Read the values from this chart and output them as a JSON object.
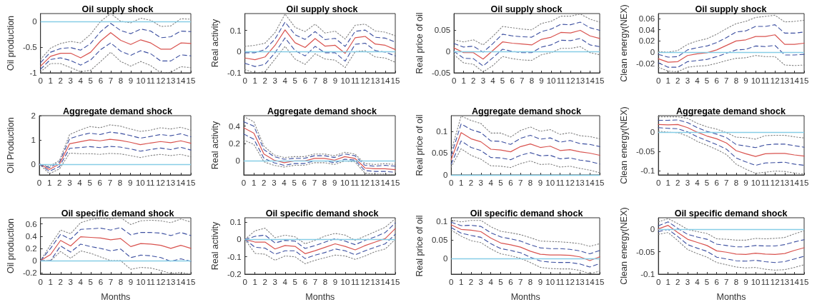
{
  "chart_data": [
    {
      "type": "line",
      "title": "Oil supply shock",
      "ylabel": "Oil production",
      "x": [
        0,
        1,
        2,
        3,
        4,
        5,
        6,
        7,
        8,
        9,
        10,
        11,
        12,
        13,
        14,
        15
      ],
      "xlim": [
        0,
        15
      ],
      "xticks": [
        0,
        1,
        2,
        3,
        4,
        5,
        6,
        7,
        8,
        9,
        10,
        11,
        12,
        13,
        14,
        15
      ],
      "ylim": [
        -1,
        0.15
      ],
      "yticks": [
        -1,
        -0.5,
        0
      ],
      "marker": "none",
      "grid": false,
      "ref_lines": [
        {
          "axis": "y",
          "value": 0,
          "color": "#87cde6"
        }
      ],
      "series": [
        {
          "color": "#808080",
          "line_style": "dotted",
          "values": [
            -0.74,
            -0.52,
            -0.43,
            -0.39,
            -0.42,
            -0.25,
            0,
            0.15,
            0,
            -0.03,
            0.06,
            0.02,
            -0.1,
            -0.09,
            0.05,
            0.04
          ]
        },
        {
          "color": "#3c4fa0",
          "line_style": "dashed",
          "values": [
            -0.8,
            -0.6,
            -0.53,
            -0.51,
            -0.56,
            -0.43,
            -0.2,
            -0.04,
            -0.18,
            -0.24,
            -0.15,
            -0.19,
            -0.32,
            -0.3,
            -0.19,
            -0.2
          ]
        },
        {
          "color": "#d9534f",
          "line_style": "solid",
          "values": [
            -0.87,
            -0.68,
            -0.62,
            -0.62,
            -0.71,
            -0.6,
            -0.38,
            -0.22,
            -0.37,
            -0.45,
            -0.36,
            -0.42,
            -0.54,
            -0.54,
            -0.42,
            -0.43
          ]
        },
        {
          "color": "#3c4fa0",
          "line_style": "dashed",
          "values": [
            -0.93,
            -0.74,
            -0.71,
            -0.76,
            -0.85,
            -0.75,
            -0.55,
            -0.42,
            -0.58,
            -0.66,
            -0.57,
            -0.63,
            -0.77,
            -0.77,
            -0.65,
            -0.67
          ]
        },
        {
          "color": "#808080",
          "line_style": "dotted",
          "values": [
            -0.98,
            -0.82,
            -0.82,
            -0.9,
            -0.98,
            -0.95,
            -0.78,
            -0.6,
            -0.78,
            -0.87,
            -0.78,
            -0.86,
            -1,
            -0.99,
            -0.88,
            -0.9
          ]
        }
      ]
    },
    {
      "type": "line",
      "title": "Oil supply shock",
      "ylabel": "Real activity",
      "x": [
        0,
        1,
        2,
        3,
        4,
        5,
        6,
        7,
        8,
        9,
        10,
        11,
        12,
        13,
        14,
        15
      ],
      "xlim": [
        0,
        15
      ],
      "xticks": [
        0,
        1,
        2,
        3,
        4,
        5,
        6,
        7,
        8,
        9,
        10,
        11,
        12,
        13,
        14,
        15
      ],
      "ylim": [
        -0.1,
        0.18
      ],
      "yticks": [
        -0.1,
        0,
        0.1
      ],
      "marker": "none",
      "grid": false,
      "ref_lines": [
        {
          "axis": "y",
          "value": 0,
          "color": "#87cde6"
        }
      ],
      "series": [
        {
          "color": "#808080",
          "line_style": "dotted",
          "values": [
            0.025,
            0.03,
            0.04,
            0.09,
            0.178,
            0.115,
            0.095,
            0.13,
            0.088,
            0.097,
            0.06,
            0.125,
            0.13,
            0.098,
            0.092,
            0.075
          ]
        },
        {
          "color": "#3c4fa0",
          "line_style": "dashed",
          "values": [
            -0.005,
            -0.005,
            0.01,
            0.06,
            0.14,
            0.08,
            0.058,
            0.095,
            0.057,
            0.063,
            0.025,
            0.096,
            0.102,
            0.068,
            0.064,
            0.045
          ]
        },
        {
          "color": "#d9534f",
          "line_style": "solid",
          "values": [
            -0.03,
            -0.038,
            -0.025,
            0.03,
            0.103,
            0.042,
            0.02,
            0.062,
            0.026,
            0.03,
            -0.008,
            0.066,
            0.072,
            0.036,
            0.03,
            0.01
          ]
        },
        {
          "color": "#3c4fa0",
          "line_style": "dashed",
          "values": [
            -0.055,
            -0.07,
            -0.06,
            -0.005,
            0.065,
            0.005,
            -0.02,
            0.025,
            -0.005,
            -0.005,
            -0.045,
            0.035,
            0.04,
            0.005,
            -0.002,
            -0.02
          ]
        },
        {
          "color": "#808080",
          "line_style": "dotted",
          "values": [
            -0.085,
            -0.1,
            -0.095,
            -0.035,
            0.025,
            -0.035,
            -0.06,
            -0.01,
            -0.035,
            -0.04,
            -0.075,
            0,
            0.005,
            -0.025,
            -0.03,
            -0.05
          ]
        }
      ]
    },
    {
      "type": "line",
      "title": "Oil supply shock",
      "ylabel": "Real price of oil",
      "x": [
        0,
        1,
        2,
        3,
        4,
        5,
        6,
        7,
        8,
        9,
        10,
        11,
        12,
        13,
        14,
        15
      ],
      "xlim": [
        0,
        15
      ],
      "xticks": [
        0,
        1,
        2,
        3,
        4,
        5,
        6,
        7,
        8,
        9,
        10,
        11,
        12,
        13,
        14,
        15
      ],
      "ylim": [
        -0.05,
        0.088
      ],
      "yticks": [
        -0.05,
        0,
        0.05
      ],
      "marker": "none",
      "grid": false,
      "ref_lines": [
        {
          "axis": "y",
          "value": 0,
          "color": "#87cde6"
        }
      ],
      "series": [
        {
          "color": "#808080",
          "line_style": "dotted",
          "values": [
            0.027,
            0.022,
            0.027,
            0.015,
            0.035,
            0.058,
            0.055,
            0.052,
            0.05,
            0.065,
            0.07,
            0.082,
            0.082,
            0.087,
            0.075,
            0.068
          ]
        },
        {
          "color": "#3c4fa0",
          "line_style": "dashed",
          "values": [
            0.018,
            0.01,
            0.012,
            -0.002,
            0.018,
            0.04,
            0.036,
            0.034,
            0.033,
            0.046,
            0.052,
            0.063,
            0.062,
            0.068,
            0.055,
            0.049
          ]
        },
        {
          "color": "#d9534f",
          "line_style": "solid",
          "values": [
            0.008,
            -0.003,
            -0.003,
            -0.018,
            0.002,
            0.022,
            0.019,
            0.017,
            0.015,
            0.028,
            0.033,
            0.044,
            0.043,
            0.049,
            0.036,
            0.03
          ]
        },
        {
          "color": "#3c4fa0",
          "line_style": "dashed",
          "values": [
            0,
            -0.016,
            -0.017,
            -0.034,
            -0.015,
            0.005,
            0,
            -0.003,
            -0.003,
            0.01,
            0.015,
            0.026,
            0.025,
            0.03,
            0.015,
            0.011
          ]
        },
        {
          "color": "#808080",
          "line_style": "dotted",
          "values": [
            -0.008,
            -0.027,
            -0.03,
            -0.048,
            -0.033,
            -0.012,
            -0.017,
            -0.02,
            -0.021,
            -0.008,
            -0.003,
            0.007,
            0.007,
            0.011,
            -0.003,
            -0.008
          ]
        }
      ]
    },
    {
      "type": "line",
      "title": "Oil supply shock",
      "ylabel": "Clean energy(NEX)",
      "x": [
        0,
        1,
        2,
        3,
        4,
        5,
        6,
        7,
        8,
        9,
        10,
        11,
        12,
        13,
        14,
        15
      ],
      "xlim": [
        0,
        15
      ],
      "xticks": [
        0,
        1,
        2,
        3,
        4,
        5,
        6,
        7,
        8,
        9,
        10,
        11,
        12,
        13,
        14,
        15
      ],
      "ylim": [
        -0.037,
        0.069
      ],
      "yticks": [
        -0.02,
        0,
        0.02,
        0.04,
        0.06
      ],
      "marker": "none",
      "grid": false,
      "ref_lines": [
        {
          "axis": "y",
          "value": 0,
          "color": "#87cde6"
        }
      ],
      "series": [
        {
          "color": "#808080",
          "line_style": "dotted",
          "values": [
            0.001,
            0,
            0.003,
            0.014,
            0.02,
            0.024,
            0.032,
            0.042,
            0.051,
            0.055,
            0.062,
            0.064,
            0.066,
            0.054,
            0.055,
            0.057
          ]
        },
        {
          "color": "#3c4fa0",
          "line_style": "dashed",
          "values": [
            -0.004,
            -0.009,
            -0.008,
            0.004,
            0.008,
            0.011,
            0.017,
            0.026,
            0.036,
            0.038,
            0.046,
            0.046,
            0.049,
            0.034,
            0.034,
            0.036
          ]
        },
        {
          "color": "#d9534f",
          "line_style": "solid",
          "values": [
            -0.012,
            -0.018,
            -0.017,
            -0.006,
            -0.003,
            -0.001,
            0.004,
            0.012,
            0.02,
            0.022,
            0.028,
            0.028,
            0.031,
            0.014,
            0.014,
            0.016
          ]
        },
        {
          "color": "#3c4fa0",
          "line_style": "dashed",
          "values": [
            -0.019,
            -0.027,
            -0.027,
            -0.017,
            -0.015,
            -0.013,
            -0.008,
            -0.002,
            0.004,
            0.005,
            0.011,
            0.01,
            0.012,
            -0.005,
            -0.005,
            -0.004
          ]
        },
        {
          "color": "#808080",
          "line_style": "dotted",
          "values": [
            -0.027,
            -0.034,
            -0.035,
            -0.027,
            -0.025,
            -0.024,
            -0.02,
            -0.015,
            -0.011,
            -0.01,
            -0.006,
            -0.008,
            -0.008,
            -0.023,
            -0.024,
            -0.023
          ]
        }
      ]
    },
    {
      "type": "line",
      "title": "Aggregate demand shock",
      "ylabel": "Oil Production",
      "x": [
        0,
        1,
        2,
        3,
        4,
        5,
        6,
        7,
        8,
        9,
        10,
        11,
        12,
        13,
        14,
        15
      ],
      "xlim": [
        0,
        15
      ],
      "xticks": [
        0,
        1,
        2,
        3,
        4,
        5,
        6,
        7,
        8,
        9,
        10,
        11,
        12,
        13,
        14,
        15
      ],
      "ylim": [
        -0.45,
        2
      ],
      "yticks": [
        0,
        1,
        2
      ],
      "marker": "none",
      "grid": false,
      "ref_lines": [
        {
          "axis": "y",
          "value": 0,
          "color": "#87cde6"
        }
      ],
      "series": [
        {
          "color": "#808080",
          "line_style": "dotted",
          "values": [
            0,
            -0.1,
            0.15,
            1.22,
            1.4,
            1.55,
            1.5,
            1.62,
            1.57,
            1.45,
            1.35,
            1.4,
            1.5,
            1.45,
            1.52,
            1.4
          ]
        },
        {
          "color": "#3c4fa0",
          "line_style": "dashed",
          "values": [
            0,
            -0.15,
            0.08,
            1.05,
            1.18,
            1.28,
            1.22,
            1.32,
            1.27,
            1.18,
            1.07,
            1.14,
            1.22,
            1.17,
            1.25,
            1.13
          ]
        },
        {
          "color": "#d9534f",
          "line_style": "solid",
          "values": [
            0,
            -0.22,
            0,
            0.84,
            0.92,
            1,
            0.96,
            1.02,
            0.98,
            0.9,
            0.8,
            0.87,
            0.93,
            0.88,
            0.96,
            0.86
          ]
        },
        {
          "color": "#3c4fa0",
          "line_style": "dashed",
          "values": [
            0,
            -0.3,
            -0.1,
            0.65,
            0.68,
            0.72,
            0.68,
            0.73,
            0.7,
            0.63,
            0.53,
            0.6,
            0.66,
            0.6,
            0.69,
            0.58
          ]
        },
        {
          "color": "#808080",
          "line_style": "dotted",
          "values": [
            0,
            -0.4,
            -0.2,
            0.45,
            0.43,
            0.43,
            0.4,
            0.44,
            0.42,
            0.35,
            0.27,
            0.35,
            0.4,
            0.35,
            0.4,
            0.3
          ]
        }
      ]
    },
    {
      "type": "line",
      "title": "Aggregate demand shock",
      "ylabel": "Real activity",
      "x": [
        0,
        1,
        2,
        3,
        4,
        5,
        6,
        7,
        8,
        9,
        10,
        11,
        12,
        13,
        14,
        15
      ],
      "xlim": [
        0,
        15
      ],
      "xticks": [
        0,
        1,
        2,
        3,
        4,
        5,
        6,
        7,
        8,
        9,
        10,
        11,
        12,
        13,
        14,
        15
      ],
      "ylim": [
        -0.16,
        0.52
      ],
      "yticks": [
        0,
        0.2,
        0.4
      ],
      "marker": "none",
      "grid": false,
      "ref_lines": [
        {
          "axis": "y",
          "value": 0,
          "color": "#87cde6"
        }
      ],
      "series": [
        {
          "color": "#808080",
          "line_style": "dotted",
          "values": [
            0.51,
            0.45,
            0.17,
            0.07,
            0.04,
            0.05,
            0.05,
            0.08,
            0.08,
            0.06,
            0.1,
            0.08,
            -0.03,
            -0.04,
            -0.03,
            -0.04
          ]
        },
        {
          "color": "#3c4fa0",
          "line_style": "dashed",
          "values": [
            0.45,
            0.4,
            0.13,
            0.05,
            0.02,
            0.03,
            0.03,
            0.06,
            0.06,
            0.04,
            0.08,
            0.06,
            -0.05,
            -0.06,
            -0.05,
            -0.06
          ]
        },
        {
          "color": "#d9534f",
          "line_style": "solid",
          "values": [
            0.38,
            0.32,
            0.08,
            0.01,
            -0.02,
            0,
            0,
            0.03,
            0.03,
            0.01,
            0.05,
            0.03,
            -0.08,
            -0.09,
            -0.09,
            -0.1
          ]
        },
        {
          "color": "#3c4fa0",
          "line_style": "dashed",
          "values": [
            0.31,
            0.25,
            0.03,
            -0.02,
            -0.05,
            -0.03,
            -0.03,
            0,
            0,
            -0.02,
            0.02,
            0.01,
            -0.11,
            -0.12,
            -0.12,
            -0.13
          ]
        },
        {
          "color": "#808080",
          "line_style": "dotted",
          "values": [
            0.24,
            0.19,
            -0.01,
            -0.05,
            -0.07,
            -0.05,
            -0.05,
            -0.02,
            -0.02,
            -0.04,
            0,
            -0.01,
            -0.14,
            -0.15,
            -0.15,
            -0.16
          ]
        }
      ]
    },
    {
      "type": "line",
      "title": "Aggregate demand shock",
      "ylabel": "Real price of oil",
      "x": [
        0,
        1,
        2,
        3,
        4,
        5,
        6,
        7,
        8,
        9,
        10,
        11,
        12,
        13,
        14,
        15
      ],
      "xlim": [
        0,
        15
      ],
      "xticks": [
        0,
        1,
        2,
        3,
        4,
        5,
        6,
        7,
        8,
        9,
        10,
        11,
        12,
        13,
        14,
        15
      ],
      "ylim": [
        0,
        0.136
      ],
      "yticks": [
        0,
        0.05,
        0.1
      ],
      "marker": "none",
      "grid": false,
      "ref_lines": [
        {
          "axis": "y",
          "value": 0,
          "color": "#87cde6"
        }
      ],
      "series": [
        {
          "color": "#808080",
          "line_style": "dotted",
          "values": [
            0.055,
            0.135,
            0.125,
            0.118,
            0.096,
            0.096,
            0.087,
            0.102,
            0.11,
            0.1,
            0.104,
            0.093,
            0.097,
            0.09,
            0.088,
            0.083
          ]
        },
        {
          "color": "#3c4fa0",
          "line_style": "dashed",
          "values": [
            0.045,
            0.117,
            0.104,
            0.097,
            0.078,
            0.077,
            0.07,
            0.084,
            0.091,
            0.082,
            0.085,
            0.075,
            0.079,
            0.072,
            0.07,
            0.065
          ]
        },
        {
          "color": "#d9534f",
          "line_style": "solid",
          "values": [
            0.035,
            0.097,
            0.083,
            0.076,
            0.059,
            0.057,
            0.053,
            0.065,
            0.071,
            0.063,
            0.066,
            0.056,
            0.058,
            0.053,
            0.05,
            0.045
          ]
        },
        {
          "color": "#3c4fa0",
          "line_style": "dashed",
          "values": [
            0.025,
            0.078,
            0.063,
            0.056,
            0.04,
            0.039,
            0.035,
            0.045,
            0.051,
            0.044,
            0.045,
            0.037,
            0.039,
            0.034,
            0.031,
            0.025
          ]
        },
        {
          "color": "#808080",
          "line_style": "dotted",
          "values": [
            0.018,
            0.06,
            0.045,
            0.036,
            0.021,
            0.02,
            0.017,
            0.026,
            0.032,
            0.024,
            0.025,
            0.018,
            0.02,
            0.015,
            0.011,
            0.005
          ]
        }
      ]
    },
    {
      "type": "line",
      "title": "Aggregate demand shock",
      "ylabel": "Clean energy(NEX)",
      "x": [
        0,
        1,
        2,
        3,
        4,
        5,
        6,
        7,
        8,
        9,
        10,
        11,
        12,
        13,
        14,
        15
      ],
      "xlim": [
        0,
        15
      ],
      "xticks": [
        0,
        1,
        2,
        3,
        4,
        5,
        6,
        7,
        8,
        9,
        10,
        11,
        12,
        13,
        14,
        15
      ],
      "ylim": [
        -0.111,
        0.043
      ],
      "yticks": [
        -0.1,
        -0.05,
        0
      ],
      "marker": "none",
      "grid": false,
      "ref_lines": [
        {
          "axis": "y",
          "value": 0,
          "color": "#87cde6"
        }
      ],
      "series": [
        {
          "color": "#808080",
          "line_style": "dotted",
          "values": [
            0.04,
            0.04,
            0.04,
            0.036,
            0.023,
            0.014,
            0.008,
            -0.001,
            -0.013,
            -0.014,
            -0.018,
            -0.009,
            -0.008,
            -0.008,
            -0.012,
            -0.015
          ]
        },
        {
          "color": "#3c4fa0",
          "line_style": "dashed",
          "values": [
            0.031,
            0.031,
            0.032,
            0.025,
            0.012,
            0.002,
            -0.005,
            -0.014,
            -0.032,
            -0.036,
            -0.04,
            -0.033,
            -0.031,
            -0.031,
            -0.035,
            -0.039
          ]
        },
        {
          "color": "#d9534f",
          "line_style": "solid",
          "values": [
            0.02,
            0.019,
            0.02,
            0.012,
            0,
            -0.01,
            -0.017,
            -0.028,
            -0.048,
            -0.056,
            -0.063,
            -0.056,
            -0.055,
            -0.055,
            -0.059,
            -0.062
          ]
        },
        {
          "color": "#3c4fa0",
          "line_style": "dashed",
          "values": [
            0.012,
            0.01,
            0.009,
            0.001,
            -0.012,
            -0.022,
            -0.032,
            -0.044,
            -0.067,
            -0.077,
            -0.086,
            -0.08,
            -0.079,
            -0.078,
            -0.083,
            -0.086
          ]
        },
        {
          "color": "#808080",
          "line_style": "dotted",
          "values": [
            0.003,
            0,
            -0.001,
            -0.01,
            -0.024,
            -0.034,
            -0.045,
            -0.058,
            -0.083,
            -0.096,
            -0.107,
            -0.104,
            -0.101,
            -0.102,
            -0.106,
            -0.109
          ]
        }
      ]
    },
    {
      "type": "line",
      "title": "Oil specific demand shock",
      "xlabel": "Months",
      "ylabel": "Oil production",
      "x": [
        0,
        1,
        2,
        3,
        4,
        5,
        6,
        7,
        8,
        9,
        10,
        11,
        12,
        13,
        14,
        15
      ],
      "xlim": [
        0,
        15
      ],
      "xticks": [
        0,
        1,
        2,
        3,
        4,
        5,
        6,
        7,
        8,
        9,
        10,
        11,
        12,
        13,
        14,
        15
      ],
      "ylim": [
        -0.22,
        0.7
      ],
      "yticks": [
        -0.2,
        0,
        0.2,
        0.4,
        0.6
      ],
      "marker": "none",
      "grid": false,
      "ref_lines": [
        {
          "axis": "y",
          "value": 0,
          "color": "#87cde6"
        }
      ],
      "series": [
        {
          "color": "#808080",
          "line_style": "dotted",
          "values": [
            0,
            0.26,
            0.5,
            0.44,
            0.62,
            0.67,
            0.69,
            0.68,
            0.7,
            0.59,
            0.65,
            0.66,
            0.65,
            0.62,
            0.68,
            0.63
          ]
        },
        {
          "color": "#3c4fa0",
          "line_style": "dashed",
          "values": [
            0,
            0.2,
            0.43,
            0.35,
            0.51,
            0.52,
            0.53,
            0.5,
            0.54,
            0.42,
            0.46,
            0.46,
            0.45,
            0.41,
            0.46,
            0.41
          ]
        },
        {
          "color": "#d9534f",
          "line_style": "solid",
          "values": [
            0,
            0.1,
            0.33,
            0.24,
            0.39,
            0.38,
            0.37,
            0.34,
            0.36,
            0.23,
            0.28,
            0.27,
            0.25,
            0.2,
            0.25,
            0.2
          ]
        },
        {
          "color": "#3c4fa0",
          "line_style": "dashed",
          "values": [
            0,
            0,
            0.24,
            0.14,
            0.27,
            0.23,
            0.2,
            0.16,
            0.19,
            0.05,
            0.09,
            0.08,
            0.05,
            -0.01,
            0.03,
            -0.01
          ]
        },
        {
          "color": "#808080",
          "line_style": "dotted",
          "values": [
            0,
            0,
            0.15,
            0.04,
            0.16,
            0.12,
            0.06,
            0,
            0,
            -0.14,
            -0.11,
            -0.12,
            -0.16,
            -0.21,
            -0.19,
            -0.22
          ]
        }
      ]
    },
    {
      "type": "line",
      "title": "Oil specific demand shock",
      "xlabel": "Months",
      "ylabel": "Real activity",
      "x": [
        0,
        1,
        2,
        3,
        4,
        5,
        6,
        7,
        8,
        9,
        10,
        11,
        12,
        13,
        14,
        15
      ],
      "xlim": [
        0,
        15
      ],
      "xticks": [
        0,
        1,
        2,
        3,
        4,
        5,
        6,
        7,
        8,
        9,
        10,
        11,
        12,
        13,
        14,
        15
      ],
      "ylim": [
        -0.2,
        0.125
      ],
      "yticks": [
        -0.2,
        -0.1,
        0,
        0.1
      ],
      "marker": "none",
      "grid": false,
      "ref_lines": [
        {
          "axis": "y",
          "value": 0,
          "color": "#87cde6"
        }
      ],
      "series": [
        {
          "color": "#808080",
          "line_style": "dotted",
          "values": [
            0,
            0.05,
            0.065,
            0.01,
            0.025,
            0.015,
            -0.025,
            -0.005,
            0.02,
            0.035,
            0.025,
            -0.005,
            0.02,
            0.045,
            0.07,
            0.12
          ]
        },
        {
          "color": "#3c4fa0",
          "line_style": "dashed",
          "values": [
            0,
            0.018,
            0.025,
            -0.02,
            -0.005,
            -0.01,
            -0.052,
            -0.035,
            -0.015,
            0.005,
            -0.01,
            -0.03,
            -0.005,
            0.015,
            0.04,
            0.095
          ]
        },
        {
          "color": "#d9534f",
          "line_style": "solid",
          "values": [
            0,
            -0.015,
            -0.015,
            -0.055,
            -0.035,
            -0.04,
            -0.082,
            -0.065,
            -0.045,
            -0.025,
            -0.04,
            -0.06,
            -0.035,
            -0.015,
            0.005,
            0.063
          ]
        },
        {
          "color": "#3c4fa0",
          "line_style": "dashed",
          "values": [
            0,
            -0.045,
            -0.05,
            -0.085,
            -0.065,
            -0.065,
            -0.11,
            -0.09,
            -0.075,
            -0.055,
            -0.065,
            -0.088,
            -0.065,
            -0.045,
            -0.025,
            0.03
          ]
        },
        {
          "color": "#808080",
          "line_style": "dotted",
          "values": [
            0,
            -0.08,
            -0.085,
            -0.12,
            -0.095,
            -0.1,
            -0.14,
            -0.12,
            -0.105,
            -0.09,
            -0.095,
            -0.115,
            -0.095,
            -0.07,
            -0.055,
            0
          ]
        }
      ]
    },
    {
      "type": "line",
      "title": "Oil specific demand shock",
      "xlabel": "Months",
      "ylabel": "Real price of oil",
      "x": [
        0,
        1,
        2,
        3,
        4,
        5,
        6,
        7,
        8,
        9,
        10,
        11,
        12,
        13,
        14,
        15
      ],
      "xlim": [
        0,
        15
      ],
      "xticks": [
        0,
        1,
        2,
        3,
        4,
        5,
        6,
        7,
        8,
        9,
        10,
        11,
        12,
        13,
        14,
        15
      ],
      "ylim": [
        -0.041,
        0.109
      ],
      "yticks": [
        0,
        0.05,
        0.1
      ],
      "marker": "none",
      "grid": false,
      "ref_lines": [
        {
          "axis": "y",
          "value": 0,
          "color": "#87cde6"
        }
      ],
      "series": [
        {
          "color": "#808080",
          "line_style": "dotted",
          "values": [
            0.103,
            0.098,
            0.102,
            0.102,
            0.085,
            0.073,
            0.069,
            0.064,
            0.056,
            0.047,
            0.046,
            0.045,
            0.043,
            0.04,
            0.033,
            0.04
          ]
        },
        {
          "color": "#3c4fa0",
          "line_style": "dashed",
          "values": [
            0.097,
            0.088,
            0.089,
            0.086,
            0.069,
            0.058,
            0.053,
            0.047,
            0.037,
            0.029,
            0.027,
            0.027,
            0.025,
            0.021,
            0.013,
            0.022
          ]
        },
        {
          "color": "#d9534f",
          "line_style": "solid",
          "values": [
            0.09,
            0.078,
            0.076,
            0.072,
            0.055,
            0.042,
            0.037,
            0.031,
            0.02,
            0.012,
            0.01,
            0.01,
            0.009,
            0.005,
            -0.005,
            0.005
          ]
        },
        {
          "color": "#3c4fa0",
          "line_style": "dashed",
          "values": [
            0.083,
            0.068,
            0.062,
            0.057,
            0.04,
            0.027,
            0.022,
            0.016,
            0.004,
            -0.006,
            -0.009,
            -0.01,
            -0.01,
            -0.014,
            -0.022,
            -0.013
          ]
        },
        {
          "color": "#808080",
          "line_style": "dotted",
          "values": [
            0.076,
            0.06,
            0.048,
            0.043,
            0.026,
            0.013,
            0.008,
            0.001,
            -0.01,
            -0.023,
            -0.026,
            -0.027,
            -0.027,
            -0.031,
            -0.04,
            -0.033
          ]
        }
      ]
    },
    {
      "type": "line",
      "title": "Oil specific demand shock",
      "xlabel": "Months",
      "ylabel": "Clean energy(NEX)",
      "x": [
        0,
        1,
        2,
        3,
        4,
        5,
        6,
        7,
        8,
        9,
        10,
        11,
        12,
        13,
        14,
        15
      ],
      "xlim": [
        0,
        15
      ],
      "xticks": [
        0,
        1,
        2,
        3,
        4,
        5,
        6,
        7,
        8,
        9,
        10,
        11,
        12,
        13,
        14,
        15
      ],
      "ylim": [
        -0.1,
        0.026
      ],
      "yticks": [
        -0.1,
        -0.05,
        0
      ],
      "marker": "none",
      "grid": false,
      "ref_lines": [
        {
          "axis": "y",
          "value": 0,
          "color": "#87cde6"
        }
      ],
      "series": [
        {
          "color": "#808080",
          "line_style": "dotted",
          "values": [
            0.017,
            0.024,
            0.013,
            0,
            -0.005,
            -0.009,
            -0.021,
            -0.022,
            -0.024,
            -0.024,
            -0.02,
            -0.021,
            -0.02,
            -0.018,
            -0.01,
            -0.003
          ]
        },
        {
          "color": "#3c4fa0",
          "line_style": "dashed",
          "values": [
            0.008,
            0.017,
            0.002,
            -0.011,
            -0.017,
            -0.022,
            -0.033,
            -0.036,
            -0.039,
            -0.039,
            -0.036,
            -0.037,
            -0.037,
            -0.034,
            -0.028,
            -0.023
          ]
        },
        {
          "color": "#d9534f",
          "line_style": "solid",
          "values": [
            0.001,
            0.009,
            -0.007,
            -0.022,
            -0.029,
            -0.036,
            -0.048,
            -0.051,
            -0.055,
            -0.056,
            -0.053,
            -0.055,
            -0.056,
            -0.054,
            -0.047,
            -0.041
          ]
        },
        {
          "color": "#3c4fa0",
          "line_style": "dashed",
          "values": [
            -0.005,
            0,
            -0.016,
            -0.034,
            -0.042,
            -0.049,
            -0.062,
            -0.066,
            -0.07,
            -0.071,
            -0.069,
            -0.072,
            -0.074,
            -0.072,
            -0.066,
            -0.06
          ]
        },
        {
          "color": "#808080",
          "line_style": "dotted",
          "values": [
            -0.011,
            -0.007,
            -0.025,
            -0.045,
            -0.054,
            -0.062,
            -0.074,
            -0.079,
            -0.084,
            -0.086,
            -0.085,
            -0.089,
            -0.091,
            -0.09,
            -0.085,
            -0.079
          ]
        }
      ]
    }
  ]
}
